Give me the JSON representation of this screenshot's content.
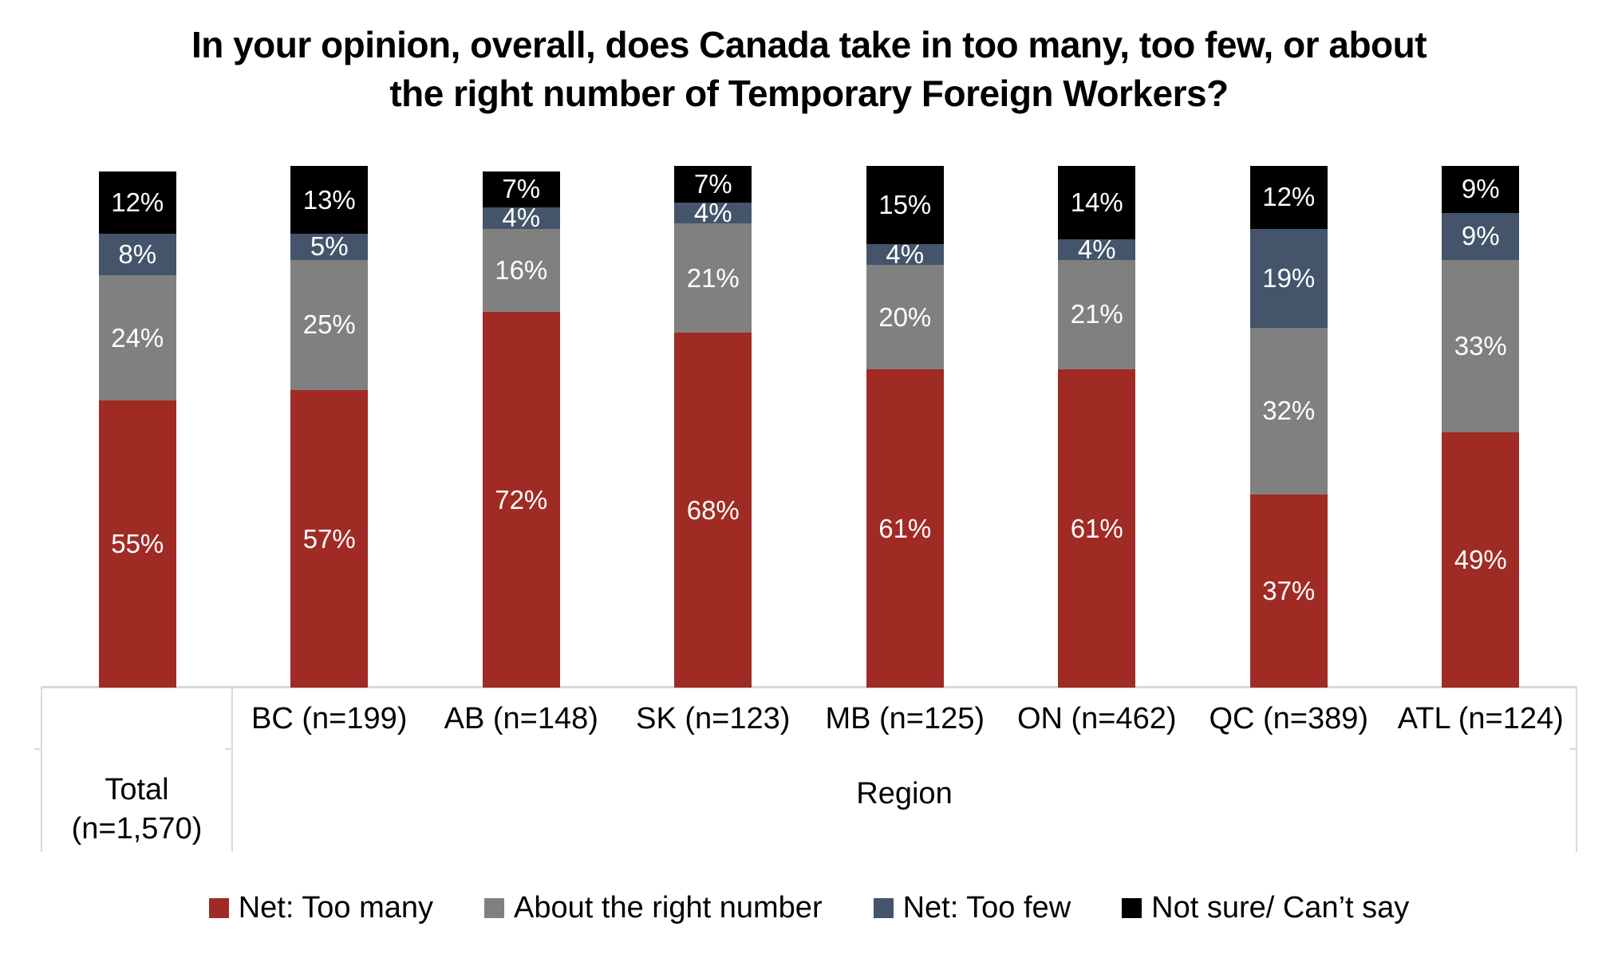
{
  "title_lines": [
    "In your opinion, overall, does Canada take in too many, too few, or about",
    "the right number of Temporary Foreign Workers?"
  ],
  "axis": {
    "leaf_labels": [
      "",
      "BC (n=199)",
      "AB (n=148)",
      "SK (n=123)",
      "MB (n=125)",
      "ON (n=462)",
      "QC (n=389)",
      "ATL (n=124)"
    ],
    "total_label": [
      "Total",
      "(n=1,570)"
    ],
    "group_label": "Region"
  },
  "colors": {
    "too_many": "#A02B25",
    "about_right": "#808080",
    "too_few": "#44546A",
    "not_sure": "#000000",
    "table_line": "#D9D9D9",
    "data_label_text": "#FFFFFF"
  },
  "chart_data": {
    "type": "bar",
    "stacked": true,
    "value_unit": "%",
    "title": "In your opinion, overall, does Canada take in too many, too few, or about the right number of Temporary Foreign Workers?",
    "categories": [
      "Total (n=1,570)",
      "BC (n=199)",
      "AB (n=148)",
      "SK (n=123)",
      "MB (n=125)",
      "ON (n=462)",
      "QC (n=389)",
      "ATL (n=124)"
    ],
    "sample_sizes": [
      1570,
      199,
      148,
      123,
      125,
      462,
      389,
      124
    ],
    "x_group_label": "Region",
    "series": [
      {
        "name": "Net: Too many",
        "color": "#A02B25",
        "values": [
          55,
          57,
          72,
          68,
          61,
          61,
          37,
          49
        ]
      },
      {
        "name": "About the right number",
        "color": "#808080",
        "values": [
          24,
          25,
          16,
          21,
          20,
          21,
          32,
          33
        ]
      },
      {
        "name": "Net: Too few",
        "color": "#44546A",
        "values": [
          8,
          5,
          4,
          4,
          4,
          4,
          19,
          9
        ]
      },
      {
        "name": "Not sure/ Can’t say",
        "color": "#000000",
        "values": [
          12,
          13,
          7,
          7,
          15,
          14,
          12,
          9
        ]
      }
    ],
    "ylim": [
      0,
      100
    ],
    "gridlines": false,
    "legend_position": "bottom",
    "data_labels": "inside segments, white, percent"
  }
}
